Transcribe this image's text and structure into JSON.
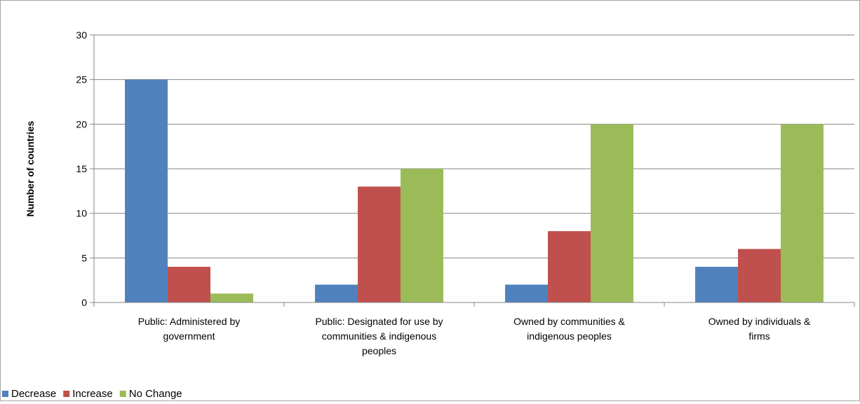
{
  "chart_data": {
    "type": "bar",
    "title": "",
    "xlabel": "",
    "ylabel": "Number of countries",
    "ylim": [
      0,
      30
    ],
    "yticks": [
      0,
      5,
      10,
      15,
      20,
      25,
      30
    ],
    "grid": true,
    "legend_position": "bottom-left",
    "categories": [
      [
        "Public: Administered by",
        "government"
      ],
      [
        "Public: Designated for use by",
        "communities & indigenous",
        "peoples"
      ],
      [
        "Owned by communities &",
        "indigenous peoples"
      ],
      [
        "Owned by individuals &",
        "firms"
      ]
    ],
    "series": [
      {
        "name": "Decrease",
        "color": "#4f81bd",
        "values": [
          25,
          2,
          2,
          4
        ]
      },
      {
        "name": "Increase",
        "color": "#c0504d",
        "values": [
          4,
          13,
          8,
          6
        ]
      },
      {
        "name": "No Change",
        "color": "#9bbb59",
        "values": [
          1,
          15,
          20,
          20
        ]
      }
    ]
  }
}
